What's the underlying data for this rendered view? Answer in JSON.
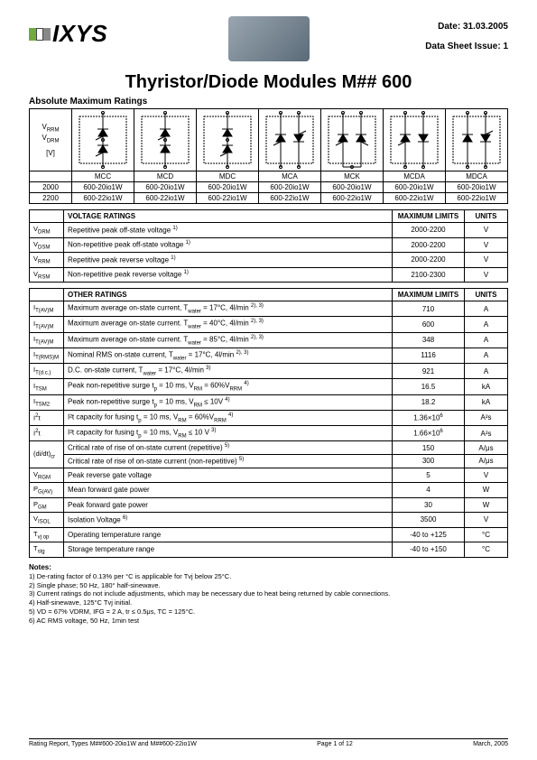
{
  "header": {
    "company": "IXYS",
    "date_label": "Date:",
    "date": "31.03.2005",
    "issue_label": "Data Sheet Issue:",
    "issue": "1"
  },
  "title": "Thyristor/Diode Modules M## 600",
  "section_amr": "Absolute Maximum Ratings",
  "module_header": {
    "sym1": "V",
    "sub1": "RRM",
    "sym2": "V",
    "sub2": "DRM",
    "unit": "[V]"
  },
  "module_types": [
    "MCC",
    "MCD",
    "MDC",
    "MCA",
    "MCK",
    "MCDA",
    "MDCA"
  ],
  "module_rows": [
    [
      "2000",
      "600-20io1W",
      "600-20io1W",
      "600-20io1W",
      "600-20io1W",
      "600-20io1W",
      "600-20io1W",
      "600-20io1W"
    ],
    [
      "2200",
      "600-22io1W",
      "600-22io1W",
      "600-22io1W",
      "600-22io1W",
      "600-22io1W",
      "600-22io1W",
      "600-22io1W"
    ]
  ],
  "voltage_ratings": {
    "title": "VOLTAGE RATINGS",
    "max_title": "MAXIMUM LIMITS",
    "units_title": "UNITS",
    "rows": [
      {
        "sym": "V",
        "sub": "DRM",
        "desc": "Repetitive peak off-state voltage",
        "sup": "1)",
        "lim": "2000-2200",
        "u": "V"
      },
      {
        "sym": "V",
        "sub": "DSM",
        "desc": "Non-repetitive peak off-state voltage",
        "sup": "1)",
        "lim": "2000-2200",
        "u": "V"
      },
      {
        "sym": "V",
        "sub": "RRM",
        "desc": "Repetitive peak reverse voltage",
        "sup": "1)",
        "lim": "2000-2200",
        "u": "V"
      },
      {
        "sym": "V",
        "sub": "RSM",
        "desc": "Non-repetitive peak reverse voltage",
        "sup": "1)",
        "lim": "2100-2300",
        "u": "V"
      }
    ]
  },
  "other_ratings": {
    "title": "OTHER RATINGS",
    "max_title": "MAXIMUM LIMITS",
    "units_title": "UNITS",
    "rows": [
      {
        "sym": "I",
        "sub": "T(AV)M",
        "desc": "Maximum average on-state current, T",
        "suffix": " = 17°C, 4l/min",
        "subw": "water",
        "sup": "2), 3)",
        "lim": "710",
        "u": "A"
      },
      {
        "sym": "I",
        "sub": "T(AV)M",
        "desc": "Maximum average on-state current. T",
        "suffix": " = 40°C, 4l/min",
        "subw": "water",
        "sup": "2), 3)",
        "lim": "600",
        "u": "A"
      },
      {
        "sym": "I",
        "sub": "T(AV)M",
        "desc": "Maximum average on-state current. T",
        "suffix": " = 85°C, 4l/min",
        "subw": "water",
        "sup": "2), 3)",
        "lim": "348",
        "u": "A"
      },
      {
        "sym": "I",
        "sub": "T(RMS)M",
        "desc": "Nominal RMS on-state current, T",
        "suffix": " = 17°C, 4l/min",
        "subw": "water",
        "sup": "2), 3)",
        "lim": "1116",
        "u": "A"
      },
      {
        "sym": "I",
        "sub": "T(d.c.)",
        "desc": "D.C. on-state current, T",
        "suffix": " = 17°C, 4l/min",
        "subw": "water",
        "sup": "3)",
        "lim": "921",
        "u": "A"
      },
      {
        "sym": "I",
        "sub": "TSM",
        "desc": "Peak non-repetitive surge t",
        "suffix": " = 10 ms, V",
        "subw": "p",
        "desc2": " = 60%V",
        "sub2": "RM",
        "sub3": "RRM",
        "sup": "4)",
        "lim": "16.5",
        "u": "kA"
      },
      {
        "sym": "I",
        "sub": "TSM2",
        "desc": "Peak non-repetitive surge t",
        "suffix": " = 10 ms, V",
        "subw": "p",
        "desc2": " ≤ 10V",
        "sub2": "RM",
        "sup": "4)",
        "lim": "18.2",
        "u": "kA"
      },
      {
        "sym": "I",
        "sub": "",
        "sym2": "2",
        "sym3": "t",
        "desc": "I²t capacity for fusing t",
        "suffix": " = 10 ms, V",
        "subw": "p",
        "desc2": " = 60%V",
        "sub2": "RM",
        "sub3": "RRM",
        "sup": "4)",
        "lim": "1.36×10",
        "limexp": "6",
        "u": "A²s"
      },
      {
        "sym": "I",
        "sub": "",
        "sym2": "2",
        "sym3": "t",
        "desc": "I²t capacity for fusing t",
        "suffix": " = 10 ms, V",
        "subw": "p",
        "desc2": " ≤ 10 V",
        "sub2": "RM",
        "sup": "3)",
        "lim": "1.66×10",
        "limexp": "6",
        "u": "A²s"
      },
      {
        "sym": "(di/dt)",
        "sub": "cr",
        "desc": "Critical rate of rise of on-state current (repetitive)",
        "sup": "5)",
        "lim": "150",
        "u": "A/μs",
        "span": 2
      },
      {
        "desc": "Critical rate of rise of on-state current (non-repetitive)",
        "sup": "5)",
        "lim": "300",
        "u": "A/μs"
      },
      {
        "sym": "V",
        "sub": "RGM",
        "desc": "Peak reverse gate voltage",
        "lim": "5",
        "u": "V"
      },
      {
        "sym": "P",
        "sub": "G(AV)",
        "desc": "Mean forward gate power",
        "lim": "4",
        "u": "W"
      },
      {
        "sym": "P",
        "sub": "GM",
        "desc": "Peak forward gate power",
        "lim": "30",
        "u": "W"
      },
      {
        "sym": "V",
        "sub": "ISOL",
        "desc": "Isolation Voltage",
        "sup": "6)",
        "lim": "3500",
        "u": "V"
      },
      {
        "sym": "T",
        "sub": "vj op",
        "desc": "Operating temperature range",
        "lim": "-40 to +125",
        "u": "°C"
      },
      {
        "sym": "T",
        "sub": "stg",
        "desc": "Storage temperature range",
        "lim": "-40 to +150",
        "u": "°C"
      }
    ]
  },
  "notes": {
    "title": "Notes:",
    "items": [
      "1)   De-rating factor of 0.13% per °C is applicable for Tvj below 25°C.",
      "2)   Single phase; 50 Hz, 180° half-sinewave.",
      "3)   Current ratings do not include adjustments, which may be necessary due to heat being returned by cable connections.",
      "4)   Half-sinewave, 125°C Tvj initial.",
      "5)   VD = 67% VDRM, IFG = 2 A, tr ≤ 0.5μs, TC = 125°C.",
      "6)   AC RMS voltage, 50 Hz, 1min test"
    ]
  },
  "footer": {
    "left": "Rating Report, Types M##600-20io1W and M##600-22io1W",
    "center": "Page 1 of 12",
    "right": "March, 2005"
  },
  "svg": {
    "stroke": "#000",
    "dotted": "2,1"
  }
}
